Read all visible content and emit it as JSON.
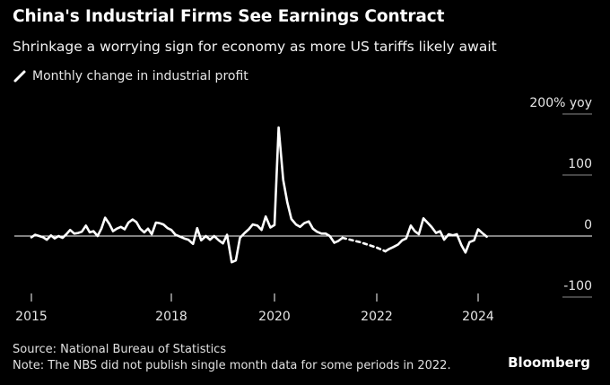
{
  "header": {
    "title": "China's Industrial Firms See Earnings Contract",
    "subtitle": "Shrinkage a worrying sign for economy as more US tariffs likely await"
  },
  "legend": {
    "label": "Monthly change in industrial profit",
    "color": "#ffffff"
  },
  "footer": {
    "source": "Source: National Bureau of Statistics",
    "note": "Note: The NBS did not publish single month data for some periods in 2022.",
    "brand": "Bloomberg"
  },
  "colors": {
    "background": "#000000",
    "line": "#ffffff",
    "axis": "#ffffff",
    "text": "#e6e6e6"
  },
  "chart_data": {
    "type": "line",
    "title": "China's Industrial Firms See Earnings Contract",
    "subtitle": "Shrinkage a worrying sign for economy as more US tariffs likely await",
    "xlabel": "",
    "ylabel": "",
    "xlim": [
      2015,
      2025.3
    ],
    "ylim": [
      -100,
      200
    ],
    "x_ticks": [
      {
        "value": 2015,
        "label": "2015"
      },
      {
        "value": 2018,
        "label": "2018"
      },
      {
        "value": 2020,
        "label": "2020"
      },
      {
        "value": 2022,
        "label": "2022"
      },
      {
        "value": 2024,
        "label": "2024"
      }
    ],
    "y_ticks": [
      {
        "value": 200,
        "label": "200% yoy"
      },
      {
        "value": 100,
        "label": "100"
      },
      {
        "value": 0,
        "label": "0"
      },
      {
        "value": -100,
        "label": "-100"
      }
    ],
    "grid": false,
    "legend_position": "top-left",
    "series": [
      {
        "name": "Monthly change in industrial profit",
        "segments": [
          {
            "style": "solid",
            "points": [
              [
                2015.0,
                -2
              ],
              [
                2015.08,
                2
              ],
              [
                2015.17,
                0
              ],
              [
                2015.25,
                -2
              ],
              [
                2015.33,
                -6
              ],
              [
                2015.42,
                1
              ],
              [
                2015.5,
                -4
              ],
              [
                2015.58,
                0
              ],
              [
                2015.67,
                -3
              ],
              [
                2015.75,
                3
              ],
              [
                2015.83,
                10
              ],
              [
                2015.92,
                4
              ],
              [
                2016.0,
                5
              ],
              [
                2016.08,
                7
              ],
              [
                2016.17,
                17
              ],
              [
                2016.25,
                6
              ],
              [
                2016.33,
                8
              ],
              [
                2016.42,
                0
              ],
              [
                2016.5,
                12
              ],
              [
                2016.58,
                30
              ],
              [
                2016.67,
                20
              ],
              [
                2016.75,
                8
              ],
              [
                2016.83,
                12
              ],
              [
                2016.92,
                15
              ],
              [
                2017.0,
                11
              ],
              [
                2017.08,
                22
              ],
              [
                2017.17,
                27
              ],
              [
                2017.25,
                23
              ],
              [
                2017.33,
                12
              ],
              [
                2017.42,
                6
              ],
              [
                2017.5,
                12
              ],
              [
                2017.58,
                3
              ],
              [
                2017.67,
                22
              ],
              [
                2017.75,
                21
              ],
              [
                2017.83,
                19
              ],
              [
                2017.92,
                13
              ],
              [
                2018.0,
                10
              ],
              [
                2018.08,
                2
              ],
              [
                2018.17,
                -1
              ],
              [
                2018.25,
                -4
              ],
              [
                2018.33,
                -6
              ],
              [
                2018.42,
                -13
              ],
              [
                2018.5,
                13
              ],
              [
                2018.58,
                -7
              ],
              [
                2018.67,
                0
              ],
              [
                2018.75,
                -6
              ],
              [
                2018.83,
                0
              ],
              [
                2018.92,
                -7
              ],
              [
                2019.0,
                -12
              ],
              [
                2019.08,
                2
              ],
              [
                2019.17,
                -43
              ],
              [
                2019.25,
                -40
              ],
              [
                2019.33,
                -3
              ],
              [
                2019.42,
                5
              ],
              [
                2019.5,
                11
              ],
              [
                2019.58,
                19
              ],
              [
                2019.67,
                17
              ],
              [
                2019.75,
                10
              ],
              [
                2019.83,
                32
              ],
              [
                2019.92,
                14
              ],
              [
                2020.0,
                18
              ],
              [
                2020.08,
                178
              ],
              [
                2020.17,
                92
              ],
              [
                2020.25,
                55
              ],
              [
                2020.33,
                28
              ],
              [
                2020.42,
                19
              ],
              [
                2020.5,
                15
              ],
              [
                2020.58,
                21
              ],
              [
                2020.67,
                24
              ],
              [
                2020.75,
                12
              ],
              [
                2020.83,
                7
              ],
              [
                2020.92,
                4
              ],
              [
                2021.0,
                4
              ],
              [
                2021.08,
                0
              ],
              [
                2021.17,
                -11
              ],
              [
                2021.25,
                -8
              ],
              [
                2021.33,
                -3
              ]
            ]
          },
          {
            "style": "dashed",
            "points": [
              [
                2021.33,
                -3
              ],
              [
                2021.67,
                -10
              ],
              [
                2022.0,
                -19
              ],
              [
                2022.17,
                -25
              ]
            ]
          },
          {
            "style": "solid",
            "points": [
              [
                2022.17,
                -25
              ],
              [
                2022.25,
                -21
              ],
              [
                2022.33,
                -18
              ],
              [
                2022.42,
                -14
              ],
              [
                2022.5,
                -7
              ],
              [
                2022.58,
                -4
              ],
              [
                2022.67,
                17
              ],
              [
                2022.75,
                8
              ],
              [
                2022.83,
                3
              ],
              [
                2022.92,
                29
              ],
              [
                2023.0,
                22
              ],
              [
                2023.08,
                15
              ],
              [
                2023.17,
                5
              ],
              [
                2023.25,
                8
              ],
              [
                2023.33,
                -6
              ],
              [
                2023.42,
                3
              ],
              [
                2023.5,
                1
              ],
              [
                2023.58,
                3
              ],
              [
                2023.67,
                -15
              ],
              [
                2023.75,
                -27
              ],
              [
                2023.83,
                -10
              ],
              [
                2023.92,
                -7
              ],
              [
                2024.0,
                11
              ],
              [
                2024.08,
                5
              ],
              [
                2024.17,
                -1
              ]
            ]
          }
        ]
      }
    ]
  }
}
